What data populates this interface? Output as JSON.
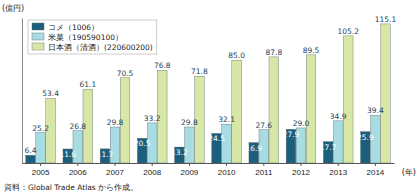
{
  "chart_data": {
    "type": "bar",
    "ylabel": "(億円)",
    "xlabel": "(年)",
    "annotations": [
      "資料：Global Trade Atlas から作成。"
    ],
    "categories": [
      "2005",
      "2006",
      "2007",
      "2008",
      "2009",
      "2010",
      "2011",
      "2012",
      "2013",
      "2014"
    ],
    "series": [
      {
        "name": "コメ（1006）",
        "color": "#1b5f7c",
        "values": [
          6.4,
          11.6,
          11.7,
          20.5,
          13.2,
          24.5,
          16.9,
          27.9,
          17.7,
          25.9
        ],
        "value_labels": [
          "6.4",
          "11.6",
          "11.7",
          "20.5",
          "13.2",
          "24.5",
          "16.9",
          "27.9",
          "17.7",
          "25.9"
        ]
      },
      {
        "name": "米菓（190590100）",
        "color": "#a8dce3",
        "values": [
          25.2,
          26.8,
          29.8,
          33.2,
          29.8,
          32.1,
          27.6,
          29.0,
          34.9,
          39.4
        ],
        "value_labels": [
          "25.2",
          "26.8",
          "29.8",
          "33.2",
          "29.8",
          "32.1",
          "27.6",
          "29.0",
          "34.9",
          "39.4"
        ]
      },
      {
        "name": "日本酒（清酒）(220600200)",
        "color": "#d9e7a6",
        "values": [
          53.4,
          61.1,
          70.5,
          76.8,
          71.8,
          85.0,
          87.8,
          89.5,
          105.2,
          115.1
        ],
        "value_labels": [
          "53.4",
          "61.1",
          "70.5",
          "76.8",
          "71.8",
          "85.0",
          "87.8",
          "89.5",
          "105.2",
          "115.1"
        ]
      }
    ],
    "ylim": [
      0,
      120
    ],
    "yticks": [],
    "tick_labels": "x",
    "data_labels": true,
    "legend": "upper left",
    "grid": false
  }
}
